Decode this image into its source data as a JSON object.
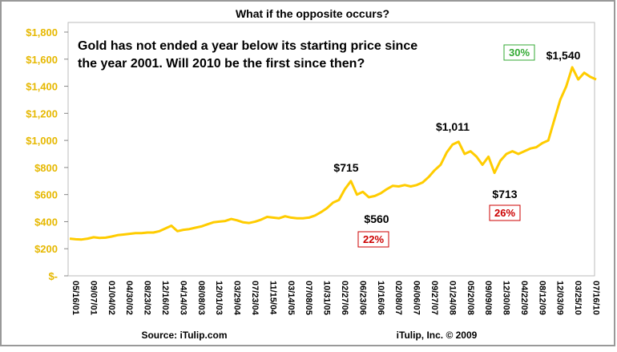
{
  "chart_data": {
    "type": "line",
    "title": "What if the opposite occurs?",
    "categories": [
      "05/16/01",
      null,
      null,
      "09/07/01",
      null,
      null,
      "01/04/02",
      null,
      null,
      "04/30/02",
      null,
      null,
      "08/23/02",
      null,
      null,
      "12/16/02",
      null,
      null,
      "04/14/03",
      null,
      null,
      "08/08/03",
      null,
      null,
      "12/01/03",
      null,
      null,
      "03/29/04",
      null,
      null,
      "07/23/04",
      null,
      null,
      "11/15/04",
      null,
      null,
      "03/14/05",
      null,
      null,
      "07/08/05",
      null,
      null,
      "10/31/05",
      null,
      null,
      "02/27/06",
      null,
      null,
      "06/23/06",
      null,
      null,
      "10/16/06",
      null,
      null,
      "02/08/07",
      null,
      null,
      "06/06/07",
      null,
      null,
      "09/27/07",
      null,
      null,
      "01/24/08",
      null,
      null,
      "05/20/08",
      null,
      null,
      "09/09/08",
      null,
      null,
      "12/30/08",
      null,
      null,
      "04/22/09",
      null,
      null,
      "08/12/09",
      null,
      null,
      "12/03/09",
      null,
      null,
      "03/25/10",
      null,
      null,
      "07/16/10",
      null
    ],
    "series": [
      {
        "name": "Gold",
        "color": "#ffcc00",
        "values": [
          275,
          270,
          268,
          275,
          285,
          280,
          282,
          290,
          300,
          305,
          310,
          315,
          315,
          320,
          320,
          330,
          350,
          370,
          330,
          340,
          345,
          355,
          365,
          380,
          395,
          400,
          405,
          420,
          410,
          395,
          390,
          400,
          415,
          435,
          430,
          425,
          440,
          430,
          425,
          425,
          430,
          445,
          470,
          500,
          540,
          560,
          640,
          700,
          600,
          620,
          580,
          590,
          610,
          640,
          665,
          660,
          670,
          660,
          670,
          690,
          730,
          780,
          820,
          910,
          970,
          990,
          900,
          920,
          880,
          820,
          880,
          760,
          850,
          900,
          920,
          900,
          920,
          940,
          950,
          980,
          1000,
          1150,
          1300,
          1400,
          1540,
          1450,
          1500,
          1470,
          1450
        ]
      }
    ],
    "ylim": [
      0,
      1800
    ],
    "yticks": [
      {
        "value": 0,
        "label": "$-"
      },
      {
        "value": 200,
        "label": "$200"
      },
      {
        "value": 400,
        "label": "$400"
      },
      {
        "value": 600,
        "label": "$600"
      },
      {
        "value": 800,
        "label": "$800"
      },
      {
        "value": 1000,
        "label": "$1,000"
      },
      {
        "value": 1200,
        "label": "$1,200"
      },
      {
        "value": 1400,
        "label": "$1,400"
      },
      {
        "value": 1600,
        "label": "$1,600"
      },
      {
        "value": 1800,
        "label": "$1,800"
      }
    ],
    "annotations": [
      "Gold has not ended a year below its starting price since",
      "the year 2001. Will 2010 be the first since then?",
      "$715",
      "$560",
      "$1,011",
      "$713",
      "$1,540",
      "22%",
      "26%",
      "30%"
    ],
    "source": "Source: iTulip.com",
    "credit": "iTulip, Inc. © 2009"
  }
}
